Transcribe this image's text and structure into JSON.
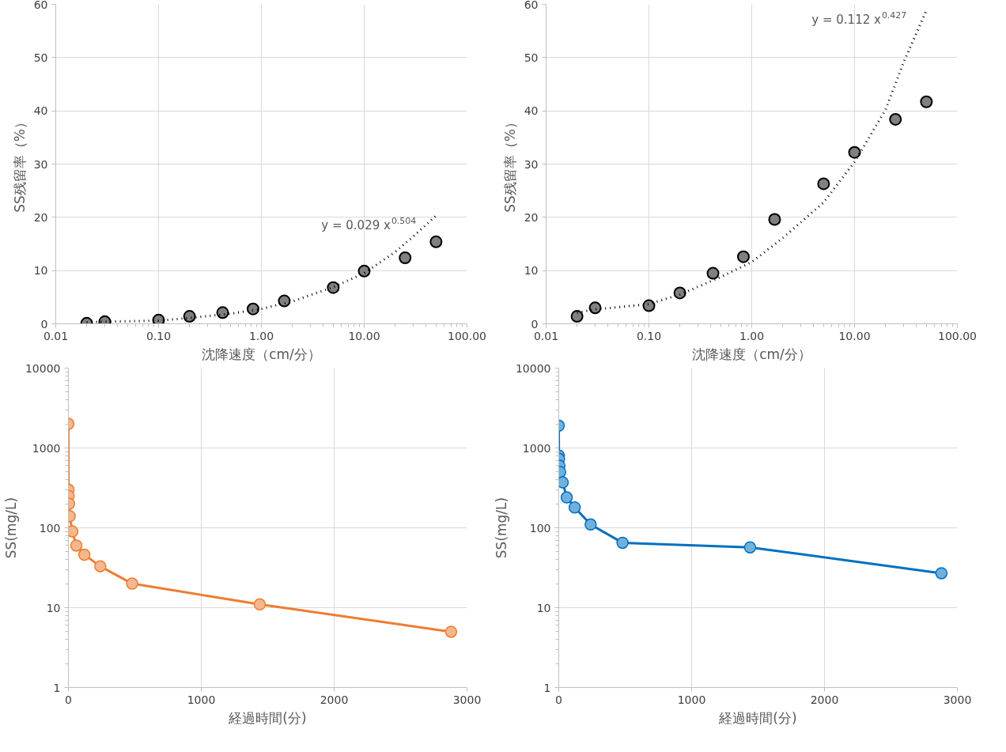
{
  "chart_data": [
    {
      "type": "scatter",
      "xlabel": "沈降速度（cm/分）",
      "ylabel": "SS残留率（%）",
      "log": "x",
      "grid": true,
      "marker": "circle",
      "xlim": [
        0.01,
        100
      ],
      "xticks": [
        0.01,
        {
          "value": 0.1,
          "label": "0.10"
        },
        {
          "value": 1,
          "label": "1.00"
        },
        {
          "value": 10,
          "label": "10.00"
        },
        {
          "value": 100,
          "label": "100.00"
        }
      ],
      "ylim": [
        0,
        60
      ],
      "yticks": [
        0,
        10,
        20,
        30,
        40,
        50,
        60
      ],
      "series": [
        {
          "type": "scatter",
          "color": "#808080",
          "x": [
            0.02,
            0.03,
            0.1,
            0.2,
            0.42,
            0.83,
            1.67,
            5,
            10,
            25,
            50
          ],
          "values": [
            0.1,
            0.4,
            0.7,
            1.4,
            2.1,
            2.8,
            4.3,
            6.8,
            9.9,
            12.4,
            15.4
          ]
        },
        {
          "type": "line",
          "marker": "none",
          "line_style": "dotted",
          "color": "#000000",
          "x": [
            0.02,
            0.03,
            0.1,
            0.2,
            0.5,
            1,
            2,
            5,
            10,
            20,
            30,
            50
          ],
          "values": [
            0.3,
            0.4,
            0.6,
            1.1,
            1.9,
            2.8,
            4.2,
            6.9,
            9.5,
            13.5,
            16.4,
            20.3
          ]
        }
      ],
      "annotations": [
        "y = 0.029 x$^{0.504}$"
      ]
    },
    {
      "type": "scatter",
      "xlabel": "沈降速度（cm/分）",
      "ylabel": "SS残留率（%）",
      "log": "x",
      "grid": true,
      "marker": "circle",
      "xlim": [
        0.01,
        100
      ],
      "xticks": [
        0.01,
        {
          "value": 0.1,
          "label": "0.10"
        },
        {
          "value": 1,
          "label": "1.00"
        },
        {
          "value": 10,
          "label": "10.00"
        },
        {
          "value": 100,
          "label": "100.00"
        }
      ],
      "ylim": [
        0,
        60
      ],
      "yticks": [
        0,
        10,
        20,
        30,
        40,
        50,
        60
      ],
      "series": [
        {
          "type": "scatter",
          "color": "#808080",
          "x": [
            0.02,
            0.03,
            0.1,
            0.2,
            0.42,
            0.83,
            1.67,
            5,
            10,
            25,
            50
          ],
          "values": [
            1.4,
            3.0,
            3.4,
            5.8,
            9.5,
            12.6,
            19.6,
            26.3,
            32.2,
            38.4,
            41.7
          ]
        },
        {
          "type": "line",
          "marker": "none",
          "line_style": "dotted",
          "color": "#000000",
          "x": [
            0.02,
            0.03,
            0.1,
            0.2,
            0.5,
            1,
            2,
            5,
            10,
            20,
            30,
            50
          ],
          "values": [
            2.1,
            2.7,
            3.7,
            5.5,
            8.8,
            11.6,
            16.1,
            22.8,
            30.4,
            40.2,
            49.1,
            58.9
          ]
        }
      ],
      "annotations": [
        "y = 0.112 x$^{0.427}$"
      ]
    },
    {
      "type": "line",
      "xlabel": "経過時間(分)",
      "ylabel": "SS(mg/L)",
      "log": "y",
      "grid": true,
      "marker": "circle",
      "xlim": [
        0,
        3000
      ],
      "xticks": [
        0,
        1000,
        2000,
        3000
      ],
      "ylim": [
        1,
        10000
      ],
      "yticks": [
        1,
        10,
        100,
        1000,
        10000
      ],
      "series": [
        {
          "color": "#ed7d31",
          "x": [
            0,
            1,
            2,
            5,
            10,
            30,
            60,
            120,
            240,
            480,
            1440,
            2880
          ],
          "values": [
            2000,
            300,
            250,
            200,
            140,
            90,
            60,
            46,
            33,
            20,
            11,
            5
          ]
        }
      ]
    },
    {
      "type": "line",
      "xlabel": "経過時間(分)",
      "ylabel": "SS(mg/L)",
      "log": "y",
      "grid": true,
      "marker": "circle",
      "xlim": [
        0,
        3000
      ],
      "xticks": [
        0,
        1000,
        2000,
        3000
      ],
      "ylim": [
        1,
        10000
      ],
      "yticks": [
        1,
        10,
        100,
        1000,
        10000
      ],
      "series": [
        {
          "color": "#0070c0",
          "x": [
            0,
            1,
            2,
            5,
            10,
            30,
            60,
            120,
            240,
            480,
            1440,
            2880
          ],
          "values": [
            1900,
            800,
            730,
            600,
            500,
            370,
            240,
            180,
            110,
            65,
            57,
            27
          ]
        }
      ]
    }
  ]
}
